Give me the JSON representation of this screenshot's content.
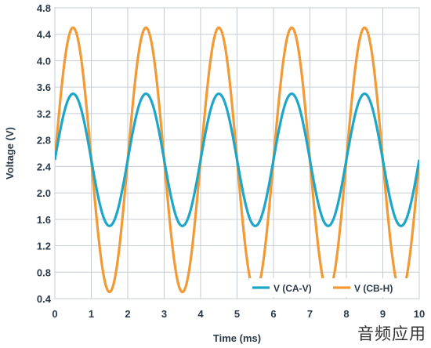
{
  "chart_data": {
    "type": "line",
    "xlabel": "Time (ms)",
    "ylabel": "Voltage (V)",
    "xlim": [
      0,
      10
    ],
    "ylim": [
      0.4,
      4.8
    ],
    "x_ticks": [
      "0",
      "1",
      "2",
      "3",
      "4",
      "5",
      "6",
      "7",
      "8",
      "9",
      "10"
    ],
    "y_ticks": [
      "0.4",
      "0.8",
      "1.2",
      "1.6",
      "2.0",
      "2.4",
      "2.8",
      "3.2",
      "3.6",
      "4.0",
      "4.4",
      "4.8"
    ],
    "grid": true,
    "legend_position": "bottom-right",
    "series": [
      {
        "name": "V (CA-V)",
        "color": "#1ea6c9",
        "waveform": "sine",
        "period_ms": 2.0,
        "offset_v": 2.5,
        "amplitude_v": 1.0,
        "phase": "rising-at-0"
      },
      {
        "name": "V (CB-H)",
        "color": "#f29a35",
        "waveform": "sine",
        "period_ms": 2.0,
        "offset_v": 2.5,
        "amplitude_v": 2.0,
        "phase": "rising-at-0"
      }
    ]
  },
  "watermark": "音频应用"
}
